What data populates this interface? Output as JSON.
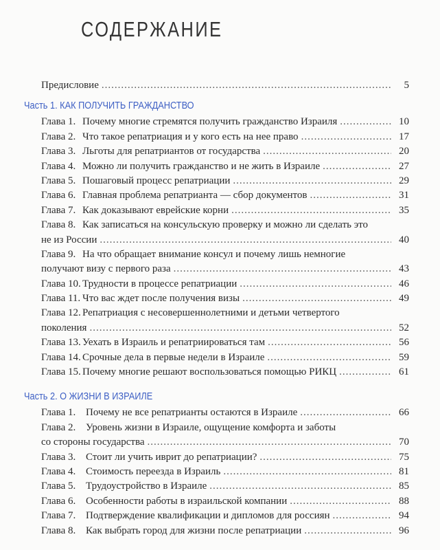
{
  "heading": "СОДЕРЖАНИЕ",
  "preface": {
    "title": "Предисловие",
    "page": "5"
  },
  "parts": [
    {
      "title": "Часть 1. КАК ПОЛУЧИТЬ ГРАЖДАНСТВО",
      "chapters": [
        {
          "label": "Глава 1.",
          "title": "Почему многие стремятся получить гражданство Израиля",
          "page": "10"
        },
        {
          "label": "Глава 2.",
          "title": "Что такое репатриация и у кого есть на нее право",
          "page": "17"
        },
        {
          "label": "Глава 3.",
          "title": "Льготы для репатриантов от государства",
          "page": "20"
        },
        {
          "label": "Глава 4.",
          "title": "Можно ли получить гражданство и не жить в Израиле",
          "page": "27"
        },
        {
          "label": "Глава 5.",
          "title": "Пошаговый процесс репатриации",
          "page": "29"
        },
        {
          "label": "Глава 6.",
          "title": "Главная проблема репатрианта — сбор документов",
          "page": "31"
        },
        {
          "label": "Глава 7.",
          "title": "Как доказывают еврейские корни",
          "page": "35"
        },
        {
          "label": "Глава 8.",
          "title": "Как записаться на консульскую проверку и можно ли сделать это",
          "title2": "не из России",
          "page": "40"
        },
        {
          "label": "Глава 9.",
          "title": "На что обращает внимание консул и почему лишь немногие",
          "title2": "получают визу с первого раза",
          "page": "43"
        },
        {
          "label": "Глава 10.",
          "title": "Трудности в процессе репатриации",
          "page": "46"
        },
        {
          "label": "Глава 11.",
          "title": "Что вас ждет после получения визы",
          "page": "49"
        },
        {
          "label": "Глава 12.",
          "title": "Репатриация с несовершеннолетними и детьми четвертого",
          "title2": "поколения",
          "page": "52"
        },
        {
          "label": "Глава 13.",
          "title": "Уехать в Израиль и репатриироваться там",
          "page": "56"
        },
        {
          "label": "Глава 14.",
          "title": "Срочные дела в первые недели в Израиле",
          "page": "59"
        },
        {
          "label": "Глава 15.",
          "title": "Почему многие решают воспользоваться помощью РИКЦ",
          "page": "61"
        }
      ]
    },
    {
      "title": "Часть 2. О ЖИЗНИ В ИЗРАИЛЕ",
      "chapters": [
        {
          "label": "Глава 1.",
          "title": "Почему не все репатрианты остаются в Израиле",
          "page": "66"
        },
        {
          "label": "Глава 2.",
          "title": "Уровень жизни в Израиле, ощущение комфорта и заботы",
          "title2": "со стороны государства",
          "page": "70"
        },
        {
          "label": "Глава 3.",
          "title": "Стоит ли учить иврит до репатриации?",
          "page": "75"
        },
        {
          "label": "Глава 4.",
          "title": "Стоимость переезда в Израиль",
          "page": "81"
        },
        {
          "label": "Глава 5.",
          "title": "Трудоустройство в Израиле",
          "page": "85"
        },
        {
          "label": "Глава 6.",
          "title": "Особенности работы в израильской компании",
          "page": "88"
        },
        {
          "label": "Глава 7.",
          "title": "Подтверждение квалификации и дипломов для россиян",
          "page": "94"
        },
        {
          "label": "Глава 8.",
          "title": "Как выбрать город для жизни после репатриации",
          "page": "96"
        }
      ]
    }
  ]
}
